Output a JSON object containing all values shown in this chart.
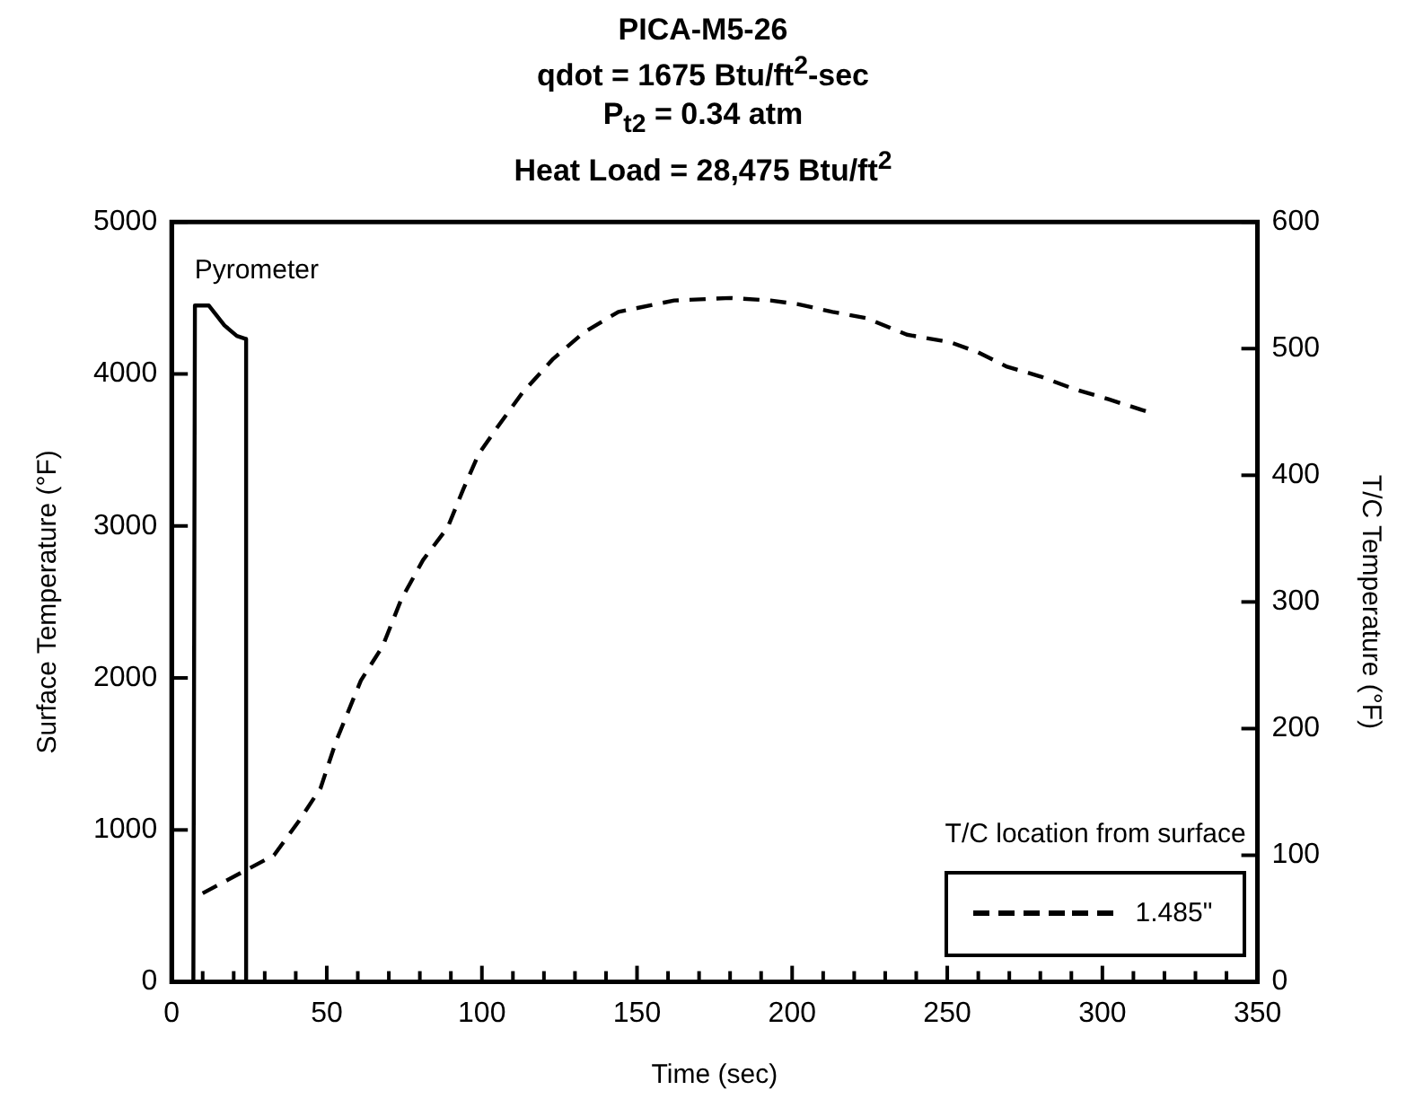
{
  "chart_data": {
    "type": "line",
    "title": "PICA-M5-26\nqdot = 1675 Btu/ft$^{2}$-sec\nP$_{t2}$ = 0.34 atm\nHeat Load = 28,475 Btu/ft$^{2}$",
    "xlabel": "Time (sec)",
    "ylabel": "Surface Temperature (°F)",
    "y2label": "T/C Temperature (°F)",
    "legend_title": "T/C location from surface",
    "legend": "bottom right",
    "annotations": [
      {
        "text": "Pyrometer",
        "x": 12,
        "y": 4450
      }
    ],
    "grid": false,
    "marker": "none",
    "xlim": [
      0,
      350
    ],
    "xticks": [
      0,
      {
        "value": 10,
        "label": null
      },
      {
        "value": 20,
        "label": null
      },
      {
        "value": 30,
        "label": null
      },
      {
        "value": 40,
        "label": null
      },
      50,
      {
        "value": 60,
        "label": null
      },
      {
        "value": 70,
        "label": null
      },
      {
        "value": 80,
        "label": null
      },
      {
        "value": 90,
        "label": null
      },
      100,
      {
        "value": 110,
        "label": null
      },
      {
        "value": 120,
        "label": null
      },
      {
        "value": 130,
        "label": null
      },
      {
        "value": 140,
        "label": null
      },
      150,
      {
        "value": 160,
        "label": null
      },
      {
        "value": 170,
        "label": null
      },
      {
        "value": 180,
        "label": null
      },
      {
        "value": 190,
        "label": null
      },
      200,
      {
        "value": 210,
        "label": null
      },
      {
        "value": 220,
        "label": null
      },
      {
        "value": 230,
        "label": null
      },
      {
        "value": 240,
        "label": null
      },
      250,
      {
        "value": 260,
        "label": null
      },
      {
        "value": 270,
        "label": null
      },
      {
        "value": 280,
        "label": null
      },
      {
        "value": 290,
        "label": null
      },
      300,
      {
        "value": 310,
        "label": null
      },
      {
        "value": 320,
        "label": null
      },
      {
        "value": 330,
        "label": null
      },
      {
        "value": 340,
        "label": null
      },
      350
    ],
    "ylim": [
      0,
      5000
    ],
    "yticks": [
      0,
      1000,
      2000,
      3000,
      4000,
      5000
    ],
    "y2lim": [
      0,
      600
    ],
    "y2ticks": [
      0,
      100,
      200,
      300,
      400,
      500,
      600
    ],
    "series": [
      {
        "color": "#000000",
        "line_style": "solid",
        "x": [
          7,
          7.5,
          12,
          17,
          21,
          24,
          24
        ],
        "values": [
          0,
          4450,
          4450,
          4320,
          4250,
          4230,
          0
        ]
      },
      {
        "name": "1.485\"",
        "color": "#000000",
        "line_style": "dashed",
        "axis": "y2",
        "x": [
          10,
          23,
          33,
          41,
          48,
          53,
          61,
          68,
          74,
          81,
          89,
          94,
          99,
          105,
          113,
          123,
          133,
          144,
          162,
          180,
          193,
          202,
          213,
          224,
          237,
          251,
          260,
          269,
          280,
          291,
          302,
          316
        ],
        "values": [
          70,
          87,
          100,
          127,
          153,
          190,
          238,
          265,
          302,
          333,
          359,
          389,
          417,
          438,
          465,
          492,
          513,
          529,
          538,
          540,
          538,
          535,
          529,
          524,
          511,
          505,
          497,
          486,
          478,
          468,
          460,
          449
        ]
      }
    ]
  }
}
